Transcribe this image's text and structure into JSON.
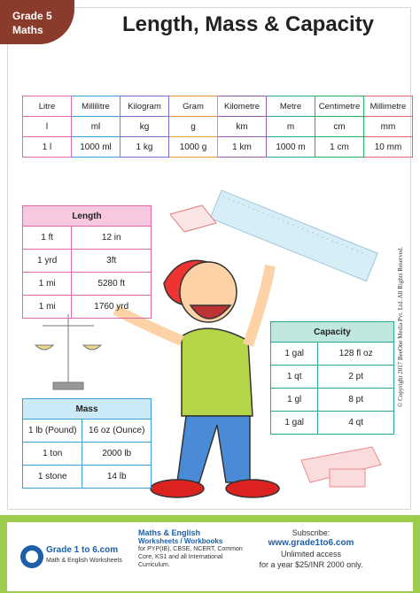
{
  "header": {
    "badge": [
      "Grade 5",
      "Maths"
    ],
    "title": "Length, Mass & Capacity"
  },
  "units_table": {
    "rows": [
      [
        "Litre",
        "Millilitre",
        "Kilogram",
        "Gram",
        "Kilometre",
        "Metre",
        "Centimetre",
        "Millimetre"
      ],
      [
        "l",
        "ml",
        "kg",
        "g",
        "km",
        "m",
        "cm",
        "mm"
      ],
      [
        "1 l",
        "1000 ml",
        "1 kg",
        "1000 g",
        "1 km",
        "1000 m",
        "1 cm",
        "10 mm"
      ]
    ]
  },
  "length_table": {
    "title": "Length",
    "rows": [
      [
        "1 ft",
        "12 in"
      ],
      [
        "1 yrd",
        "3ft"
      ],
      [
        "1 mi",
        "5280 ft"
      ],
      [
        "1 mi",
        "1760 yrd"
      ]
    ]
  },
  "mass_table": {
    "title": "Mass",
    "rows": [
      [
        "1 lb (Pound)",
        "16 oz (Ounce)"
      ],
      [
        "1 ton",
        "2000 lb"
      ],
      [
        "1 stone",
        "14 lb"
      ]
    ]
  },
  "capacity_table": {
    "title": "Capacity",
    "rows": [
      [
        "1 gal",
        "128 fl oz"
      ],
      [
        "1 qt",
        "2 pt"
      ],
      [
        "1 gl",
        "8 pt"
      ],
      [
        "1 gal",
        "4 qt"
      ]
    ]
  },
  "copyright": "© Copyright 2017 BeeOne Media Pvt. Ltd. All Rights Reserved.",
  "footer": {
    "logo": [
      "Grade 1 to 6.com",
      "Math & English Worksheets"
    ],
    "middle": [
      "Maths & English",
      "Worksheets / Workbooks",
      "for PYP(IB), CBSE, NCERT, Common Core, KS1 and all International Curriculum."
    ],
    "subscribe": [
      "Subscribe:",
      "www.grade1to6.com",
      "Unlimited access",
      "for a year $25/INR 2000 only."
    ]
  }
}
